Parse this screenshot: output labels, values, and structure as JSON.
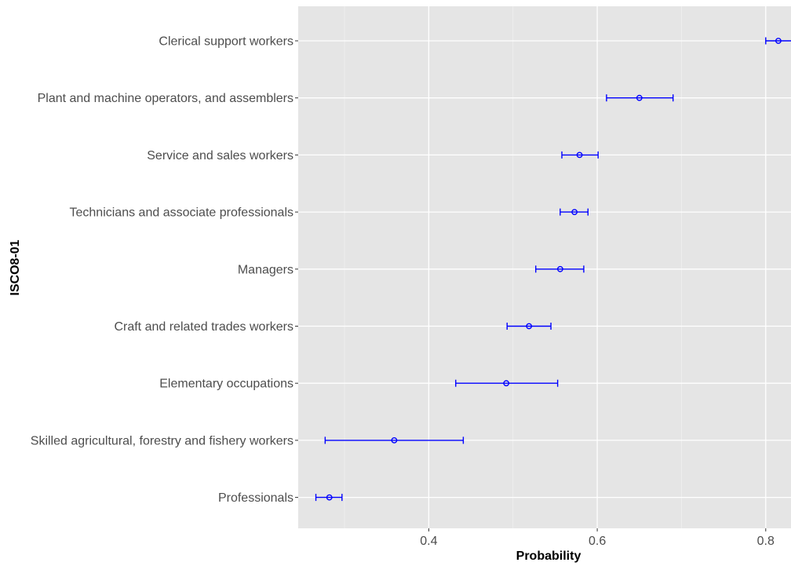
{
  "chart_data": {
    "type": "scatter",
    "subtype": "point-range (dot with error bars)",
    "xlabel": "Probability",
    "ylabel": "ISCO8-01",
    "xlim": [
      0.245,
      0.83
    ],
    "xticks": [
      0.4,
      0.6,
      0.8
    ],
    "xtick_labels": [
      "0.4",
      "0.6",
      "0.8"
    ],
    "grid": true,
    "colors": {
      "panel": "#e5e5e5",
      "grid_major": "#ffffff",
      "series": "#0000ff",
      "tick": "#333333",
      "label": "#4d4d4d"
    },
    "categories": [
      "Clerical support workers",
      "Plant and machine operators, and assemblers",
      "Service and sales workers",
      "Technicians and associate professionals",
      "Managers",
      "Craft and related trades workers",
      "Elementary occupations",
      "Skilled agricultural, forestry and fishery workers",
      "Professionals"
    ],
    "values": [
      0.815,
      0.65,
      0.579,
      0.573,
      0.556,
      0.519,
      0.492,
      0.359,
      0.282
    ],
    "lower": [
      0.8,
      0.611,
      0.558,
      0.556,
      0.527,
      0.493,
      0.432,
      0.277,
      0.266
    ],
    "upper": [
      0.831,
      0.69,
      0.601,
      0.589,
      0.584,
      0.545,
      0.553,
      0.441,
      0.297
    ]
  }
}
